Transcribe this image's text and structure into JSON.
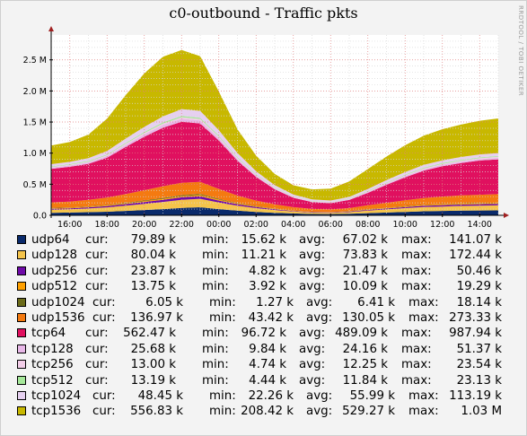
{
  "chart_data": {
    "type": "area",
    "title": "c0-outbound - Traffic pkts",
    "watermark": "RRDTOOL / TOBI OETIKER",
    "xlabel": "",
    "ylabel": "",
    "x_ticks": [
      "16:00",
      "18:00",
      "20:00",
      "22:00",
      "00:00",
      "02:00",
      "04:00",
      "06:00",
      "08:00",
      "10:00",
      "12:00",
      "14:00"
    ],
    "y_ticks": [
      {
        "value": 0,
        "label": "0.0"
      },
      {
        "value": 0.5,
        "label": "0.5 M"
      },
      {
        "value": 1.0,
        "label": "1.0 M"
      },
      {
        "value": 1.5,
        "label": "1.5 M"
      },
      {
        "value": 2.0,
        "label": "2.0 M"
      },
      {
        "value": 2.5,
        "label": "2.5 M"
      }
    ],
    "ylim": [
      0,
      2.9
    ],
    "xlim": [
      15,
      39
    ],
    "stacked": true,
    "grid": true,
    "x_hours": [
      15,
      16,
      17,
      18,
      19,
      20,
      21,
      22,
      23,
      24,
      25,
      26,
      27,
      28,
      29,
      30,
      31,
      32,
      33,
      34,
      35,
      36,
      37,
      38,
      39
    ],
    "series": [
      {
        "name": "udp64",
        "color": "#0a2a6b",
        "cur": "79.89 k",
        "min": "15.62 k",
        "avg": "67.02 k",
        "max": "141.07 k",
        "values": [
          0.04,
          0.045,
          0.05,
          0.058,
          0.07,
          0.085,
          0.1,
          0.12,
          0.13,
          0.1,
          0.075,
          0.055,
          0.04,
          0.03,
          0.022,
          0.02,
          0.025,
          0.035,
          0.045,
          0.055,
          0.065,
          0.07,
          0.075,
          0.078,
          0.08
        ]
      },
      {
        "name": "udp128",
        "color": "#f5c44b",
        "cur": "80.04 k",
        "min": "11.21 k",
        "avg": "73.83 k",
        "max": "172.44 k",
        "values": [
          0.05,
          0.052,
          0.06,
          0.07,
          0.085,
          0.1,
          0.115,
          0.13,
          0.135,
          0.105,
          0.08,
          0.06,
          0.045,
          0.03,
          0.022,
          0.02,
          0.026,
          0.04,
          0.05,
          0.06,
          0.068,
          0.072,
          0.076,
          0.078,
          0.08
        ]
      },
      {
        "name": "udp256",
        "color": "#6f0aa8",
        "cur": "23.87 k",
        "min": "4.82 k",
        "avg": "21.47 k",
        "max": "50.46 k",
        "values": [
          0.015,
          0.016,
          0.018,
          0.021,
          0.025,
          0.03,
          0.035,
          0.04,
          0.042,
          0.032,
          0.024,
          0.018,
          0.013,
          0.009,
          0.007,
          0.006,
          0.008,
          0.011,
          0.014,
          0.017,
          0.02,
          0.021,
          0.022,
          0.023,
          0.024
        ]
      },
      {
        "name": "udp512",
        "color": "#ffa000",
        "cur": "13.75 k",
        "min": "3.92 k",
        "avg": "10.09 k",
        "max": "19.29 k",
        "values": [
          0.008,
          0.008,
          0.009,
          0.01,
          0.012,
          0.014,
          0.016,
          0.018,
          0.019,
          0.015,
          0.011,
          0.009,
          0.007,
          0.005,
          0.004,
          0.004,
          0.005,
          0.007,
          0.008,
          0.01,
          0.011,
          0.012,
          0.013,
          0.013,
          0.014
        ]
      },
      {
        "name": "udp1024",
        "color": "#6b6b1a",
        "cur": "6.05 k",
        "min": "1.27 k",
        "avg": "6.41 k",
        "max": "18.14 k",
        "values": [
          0.005,
          0.005,
          0.006,
          0.007,
          0.008,
          0.01,
          0.012,
          0.015,
          0.017,
          0.012,
          0.008,
          0.005,
          0.003,
          0.002,
          0.0015,
          0.0013,
          0.002,
          0.003,
          0.004,
          0.005,
          0.005,
          0.006,
          0.006,
          0.006,
          0.006
        ]
      },
      {
        "name": "udp1536",
        "color": "#f47a10",
        "cur": "136.97 k",
        "min": "43.42 k",
        "avg": "130.05 k",
        "max": "273.33 k",
        "values": [
          0.09,
          0.095,
          0.105,
          0.12,
          0.14,
          0.165,
          0.19,
          0.2,
          0.195,
          0.16,
          0.12,
          0.09,
          0.07,
          0.055,
          0.046,
          0.044,
          0.05,
          0.065,
          0.08,
          0.095,
          0.11,
          0.12,
          0.128,
          0.133,
          0.137
        ]
      },
      {
        "name": "tcp64",
        "color": "#e0105f",
        "cur": "562.47 k",
        "min": "96.72 k",
        "avg": "489.09 k",
        "max": "987.94 k",
        "values": [
          0.54,
          0.56,
          0.58,
          0.64,
          0.76,
          0.86,
          0.94,
          0.98,
          0.94,
          0.78,
          0.56,
          0.38,
          0.24,
          0.15,
          0.11,
          0.1,
          0.13,
          0.2,
          0.29,
          0.37,
          0.44,
          0.49,
          0.52,
          0.55,
          0.56
        ]
      },
      {
        "name": "tcp128",
        "color": "#e8b8e8",
        "cur": "25.68 k",
        "min": "9.84 k",
        "avg": "24.16 k",
        "max": "51.37 k",
        "values": [
          0.02,
          0.021,
          0.024,
          0.028,
          0.034,
          0.04,
          0.046,
          0.05,
          0.049,
          0.04,
          0.03,
          0.022,
          0.016,
          0.012,
          0.01,
          0.01,
          0.012,
          0.015,
          0.018,
          0.021,
          0.023,
          0.024,
          0.025,
          0.025,
          0.026
        ]
      },
      {
        "name": "tcp256",
        "color": "#f2cde8",
        "cur": "13.00 k",
        "min": "4.74 k",
        "avg": "12.25 k",
        "max": "23.54 k",
        "values": [
          0.01,
          0.01,
          0.011,
          0.013,
          0.016,
          0.019,
          0.021,
          0.023,
          0.022,
          0.018,
          0.014,
          0.01,
          0.008,
          0.006,
          0.005,
          0.005,
          0.006,
          0.008,
          0.009,
          0.011,
          0.012,
          0.012,
          0.013,
          0.013,
          0.013
        ]
      },
      {
        "name": "tcp512",
        "color": "#a6e89a",
        "cur": "13.19 k",
        "min": "4.44 k",
        "avg": "11.84 k",
        "max": "23.13 k",
        "values": [
          0.01,
          0.01,
          0.011,
          0.013,
          0.015,
          0.018,
          0.02,
          0.022,
          0.021,
          0.017,
          0.013,
          0.01,
          0.007,
          0.006,
          0.005,
          0.005,
          0.006,
          0.008,
          0.009,
          0.011,
          0.012,
          0.012,
          0.013,
          0.013,
          0.013
        ]
      },
      {
        "name": "tcp1024",
        "color": "#e6d0f0",
        "cur": "48.45 k",
        "min": "22.26 k",
        "avg": "55.99 k",
        "max": "113.19 k",
        "values": [
          0.035,
          0.038,
          0.045,
          0.055,
          0.068,
          0.082,
          0.095,
          0.11,
          0.11,
          0.09,
          0.068,
          0.05,
          0.036,
          0.028,
          0.024,
          0.023,
          0.026,
          0.032,
          0.038,
          0.042,
          0.045,
          0.046,
          0.047,
          0.048,
          0.048
        ]
      },
      {
        "name": "tcp1536",
        "color": "#c8b800",
        "cur": "556.83 k",
        "min": "208.42 k",
        "avg": "529.27 k",
        "max": "1.03 M",
        "values": [
          0.3,
          0.32,
          0.38,
          0.52,
          0.7,
          0.86,
          0.96,
          0.95,
          0.88,
          0.62,
          0.38,
          0.25,
          0.18,
          0.15,
          0.16,
          0.19,
          0.25,
          0.32,
          0.38,
          0.43,
          0.47,
          0.5,
          0.52,
          0.54,
          0.557
        ]
      }
    ]
  },
  "legend_labels": {
    "cur": "cur:",
    "min": "min:",
    "avg": "avg:",
    "max": "max:"
  }
}
